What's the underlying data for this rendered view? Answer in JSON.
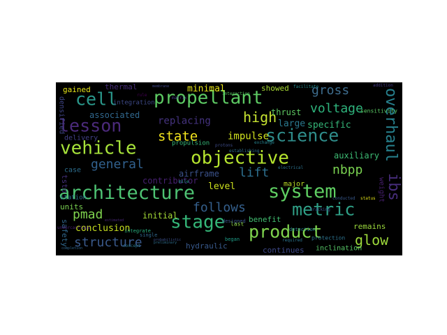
{
  "words": [
    {
      "text": "architecture",
      "color": "#4ec373"
    },
    {
      "text": "system",
      "color": "#5fcf62"
    },
    {
      "text": "vehicle",
      "color": "#a6e23a"
    },
    {
      "text": "objective",
      "color": "#b6e52f"
    },
    {
      "text": "propellant",
      "color": "#5dca63"
    },
    {
      "text": "product",
      "color": "#7fd34e"
    },
    {
      "text": "cell",
      "color": "#2a988b"
    },
    {
      "text": "lesson",
      "color": "#4b2a7b"
    },
    {
      "text": "science",
      "color": "#2f8d8b"
    },
    {
      "text": "stage",
      "color": "#35b779"
    },
    {
      "text": "metric",
      "color": "#2f9f86"
    },
    {
      "text": "general",
      "color": "#31608d"
    },
    {
      "text": "structure",
      "color": "#3a5a8c"
    },
    {
      "text": "follows",
      "color": "#35608d"
    },
    {
      "text": "overhaul",
      "color": "#27818e"
    },
    {
      "text": "glow",
      "color": "#9dd93b"
    },
    {
      "text": "voltage",
      "color": "#2eb37c"
    },
    {
      "text": "gross",
      "color": "#3e6d8e"
    },
    {
      "text": "high",
      "color": "#c6e231"
    },
    {
      "text": "state",
      "color": "#f3e51e"
    },
    {
      "text": "nbpp",
      "color": "#7ad251"
    },
    {
      "text": "pmad",
      "color": "#7fd34e"
    },
    {
      "text": "ibs",
      "color": "#472d7b"
    },
    {
      "text": "lift",
      "color": "#2d6f8e"
    },
    {
      "text": "impulse",
      "color": "#d1e31f"
    },
    {
      "text": "replacing",
      "color": "#45337f"
    },
    {
      "text": "associated",
      "color": "#31688e"
    },
    {
      "text": "specific",
      "color": "#35b779"
    },
    {
      "text": "minimal",
      "color": "#e7e419"
    },
    {
      "text": "conclusion",
      "color": "#c8e020"
    },
    {
      "text": "thrust",
      "color": "#5ec962"
    },
    {
      "text": "large",
      "color": "#2a788e"
    },
    {
      "text": "level",
      "color": "#cde11d"
    },
    {
      "text": "initial",
      "color": "#a5db36"
    },
    {
      "text": "airframe",
      "color": "#3b528b"
    },
    {
      "text": "contributor",
      "color": "#482173"
    },
    {
      "text": "auxiliary",
      "color": "#3dbc74"
    },
    {
      "text": "hydraulic",
      "color": "#38598c"
    },
    {
      "text": "benefit",
      "color": "#42be71"
    },
    {
      "text": "remains",
      "color": "#9bd93c"
    },
    {
      "text": "continues",
      "color": "#3e4989"
    },
    {
      "text": "showed",
      "color": "#a8db34"
    },
    {
      "text": "gained",
      "color": "#e5e419"
    },
    {
      "text": "thermal",
      "color": "#472c7a"
    },
    {
      "text": "densified",
      "color": "#404688"
    },
    {
      "text": "delivery",
      "color": "#424086"
    },
    {
      "text": "integration",
      "color": "#3e4a89"
    },
    {
      "text": "units",
      "color": "#7ad151"
    },
    {
      "text": "tsto",
      "color": "#46327e"
    },
    {
      "text": "case",
      "color": "#2e6e8e"
    },
    {
      "text": "safety",
      "color": "#31688e"
    },
    {
      "text": "major",
      "color": "#bddf26"
    },
    {
      "text": "propulsion",
      "color": "#35b779"
    },
    {
      "text": "station",
      "color": "#2c728e"
    },
    {
      "text": "last",
      "color": "#8fd744"
    },
    {
      "text": "inclination",
      "color": "#56c667"
    },
    {
      "text": "protection",
      "color": "#2c728e"
    },
    {
      "text": "weight",
      "color": "#481f70"
    },
    {
      "text": "sensitivity",
      "color": "#5ac864"
    },
    {
      "text": "designed",
      "color": "#3b528b"
    },
    {
      "text": "detection",
      "color": "#26828e"
    },
    {
      "text": "began",
      "color": "#1f9e89"
    },
    {
      "text": "facilitate",
      "color": "#238a8d"
    },
    {
      "text": "addition",
      "color": "#443983"
    },
    {
      "text": "interaction",
      "color": "#5ac864"
    },
    {
      "text": "concept",
      "color": "#2a788e"
    },
    {
      "text": "single",
      "color": "#31688e"
    },
    {
      "text": "integrate",
      "color": "#2ab07f"
    },
    {
      "text": "establishing",
      "color": "#2d708e"
    },
    {
      "text": "exchange",
      "color": "#26828e"
    },
    {
      "text": "tracking",
      "color": "#3b528b"
    },
    {
      "text": "conducted",
      "color": "#38598c"
    },
    {
      "text": "estimated",
      "color": "#482677"
    },
    {
      "text": "mile",
      "color": "#1e9b8a"
    },
    {
      "text": "matrix",
      "color": "#443a83"
    },
    {
      "text": "protons",
      "color": "#3e4c8a"
    },
    {
      "text": "rule",
      "color": "#440154"
    },
    {
      "text": "electrical",
      "color": "#2c728e"
    },
    {
      "text": "membrane",
      "color": "#3f4788"
    },
    {
      "text": "undercarriage",
      "color": "#482071"
    },
    {
      "text": "probabilistic",
      "color": "#3c508b"
    },
    {
      "text": "required",
      "color": "#2b748e"
    },
    {
      "text": "preliminary",
      "color": "#2e6f8e"
    },
    {
      "text": "completion",
      "color": "#31668e"
    },
    {
      "text": "status",
      "color": "#e3e418"
    }
  ]
}
